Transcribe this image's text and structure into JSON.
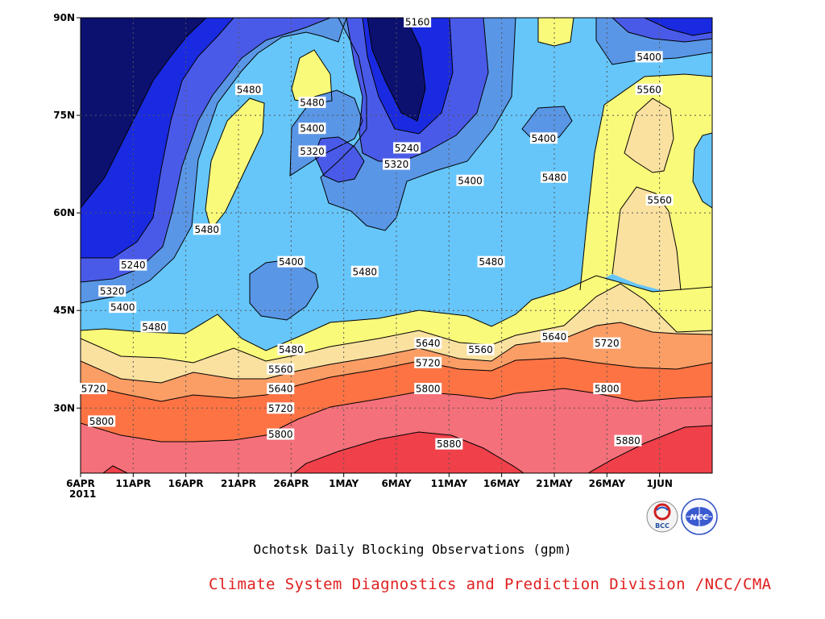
{
  "chart_data": {
    "type": "contour",
    "title": "Ochotsk Daily Blocking Observations (gpm)",
    "x_ticks": [
      "6APR",
      "11APR",
      "16APR",
      "21APR",
      "26APR",
      "1MAY",
      "6MAY",
      "11MAY",
      "16MAY",
      "21MAY",
      "26MAY",
      "1JUN"
    ],
    "x_year_label": "2011",
    "x_range": [
      "2011-04-06",
      "2011-06-05"
    ],
    "y_ticks": [
      "30N",
      "45N",
      "60N",
      "75N",
      "90N"
    ],
    "y_range": [
      20,
      90
    ],
    "grid": true,
    "contour_levels": [
      5160,
      5240,
      5320,
      5400,
      5480,
      5560,
      5640,
      5720,
      5800,
      5880
    ],
    "contour_labels": [
      {
        "value": "5160",
        "date": "2011-05-08",
        "lat": 90
      },
      {
        "value": "5480",
        "date": "2011-04-22",
        "lat": 79
      },
      {
        "value": "5480",
        "date": "2011-04-28",
        "lat": 77
      },
      {
        "value": "5400",
        "date": "2011-04-28",
        "lat": 73
      },
      {
        "value": "5320",
        "date": "2011-04-28",
        "lat": 69.5
      },
      {
        "value": "5240",
        "date": "2011-05-07",
        "lat": 70
      },
      {
        "value": "5320",
        "date": "2011-05-06",
        "lat": 67.5
      },
      {
        "value": "5400",
        "date": "2011-05-13",
        "lat": 65
      },
      {
        "value": "5400",
        "date": "2011-05-20",
        "lat": 71.5
      },
      {
        "value": "5480",
        "date": "2011-05-21",
        "lat": 65.5
      },
      {
        "value": "5400",
        "date": "2011-05-30",
        "lat": 84
      },
      {
        "value": "5560",
        "date": "2011-05-30",
        "lat": 79
      },
      {
        "value": "5560",
        "date": "2011-05-31",
        "lat": 62
      },
      {
        "value": "5480",
        "date": "2011-04-18",
        "lat": 57.5
      },
      {
        "value": "5240",
        "date": "2011-04-11",
        "lat": 52
      },
      {
        "value": "5400",
        "date": "2011-04-26",
        "lat": 52.5
      },
      {
        "value": "5480",
        "date": "2011-05-03",
        "lat": 51
      },
      {
        "value": "5480",
        "date": "2011-05-15",
        "lat": 52.5
      },
      {
        "value": "5320",
        "date": "2011-04-09",
        "lat": 48
      },
      {
        "value": "5400",
        "date": "2011-04-10",
        "lat": 45.5
      },
      {
        "value": "5480",
        "date": "2011-04-13",
        "lat": 42.5
      },
      {
        "value": "5480",
        "date": "2011-04-26",
        "lat": 39
      },
      {
        "value": "5560",
        "date": "2011-04-25",
        "lat": 36
      },
      {
        "value": "5640",
        "date": "2011-04-25",
        "lat": 33
      },
      {
        "value": "5720",
        "date": "2011-04-25",
        "lat": 30
      },
      {
        "value": "5640",
        "date": "2011-05-09",
        "lat": 40
      },
      {
        "value": "5720",
        "date": "2011-05-09",
        "lat": 37
      },
      {
        "value": "5800",
        "date": "2011-05-09",
        "lat": 33
      },
      {
        "value": "5560",
        "date": "2011-05-14",
        "lat": 39
      },
      {
        "value": "5640",
        "date": "2011-05-21",
        "lat": 41
      },
      {
        "value": "5720",
        "date": "2011-05-26",
        "lat": 40
      },
      {
        "value": "5800",
        "date": "2011-05-26",
        "lat": 33
      },
      {
        "value": "5720",
        "date": "2011-04-06",
        "lat": 33
      },
      {
        "value": "5800",
        "date": "2011-04-08",
        "lat": 28
      },
      {
        "value": "5800",
        "date": "2011-04-25",
        "lat": 26
      },
      {
        "value": "5880",
        "date": "2011-05-11",
        "lat": 24.5
      },
      {
        "value": "5880",
        "date": "2011-05-28",
        "lat": 25
      }
    ],
    "colors": {
      "5160": "#0c1170",
      "5240": "#1a2ae0",
      "5320": "#4a5ae8",
      "5400": "#5a96e6",
      "5480": "#66c6fa",
      "5560": "#fafa7a",
      "5640": "#fae1a0",
      "5720": "#fb9e66",
      "5800": "#fd7344",
      "5880": "#f4707a",
      "5960": "#f0404a"
    }
  },
  "credit": "Climate System Diagnostics and Prediction Division /NCC/CMA",
  "logos": {
    "left": "BCC",
    "right": "NCC"
  }
}
